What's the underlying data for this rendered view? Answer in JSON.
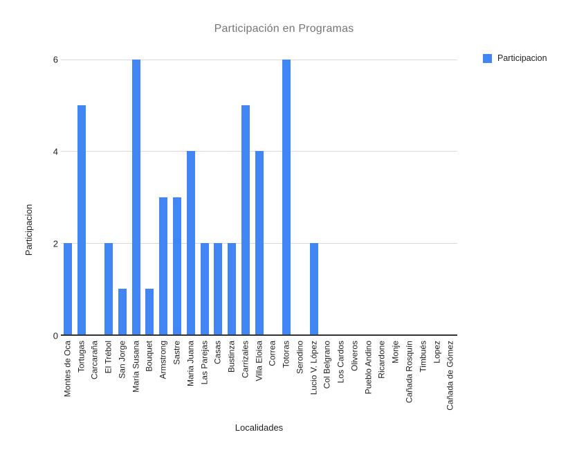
{
  "chart_data": {
    "type": "bar",
    "title": "Participación en Programas",
    "xlabel": "Localidades",
    "ylabel": "Participacion",
    "legend": {
      "position": "right",
      "label": "Participacion"
    },
    "categories": [
      "Montes de Oca",
      "Tortugas",
      "Carcaraña",
      "El Trébol",
      "San Jorge",
      "María Susana",
      "Bouquet",
      "Armstrong",
      "Sastre",
      "Maria Juana",
      "Las Parejas",
      "Casas",
      "Bustinza",
      "Carrizales",
      "Villa Eloisa",
      "Correa",
      "Totoras",
      "Serodino",
      "Lucio V. López",
      "Col Belgrano",
      "Los Cardos",
      "Oliveros",
      "Pueblo Andino",
      "Ricardone",
      "Monje",
      "Cañada Rosquín",
      "Timbués",
      "Lopez",
      "Cañada de Gómez"
    ],
    "values": [
      2,
      5,
      0,
      2,
      1,
      6,
      1,
      3,
      3,
      4,
      2,
      2,
      2,
      5,
      4,
      0,
      6,
      0,
      2,
      0,
      0,
      0,
      0,
      0,
      0,
      0,
      0,
      0,
      0
    ],
    "yticks": [
      0,
      2,
      4,
      6
    ],
    "ylim": [
      0,
      6
    ],
    "grid": true,
    "colors": {
      "bar": "#4285F4",
      "title_text": "#757575",
      "axis_text": "#1f1f1f",
      "gridline": "#d9d9d9",
      "baseline": "#333333",
      "background": "#ffffff"
    }
  }
}
